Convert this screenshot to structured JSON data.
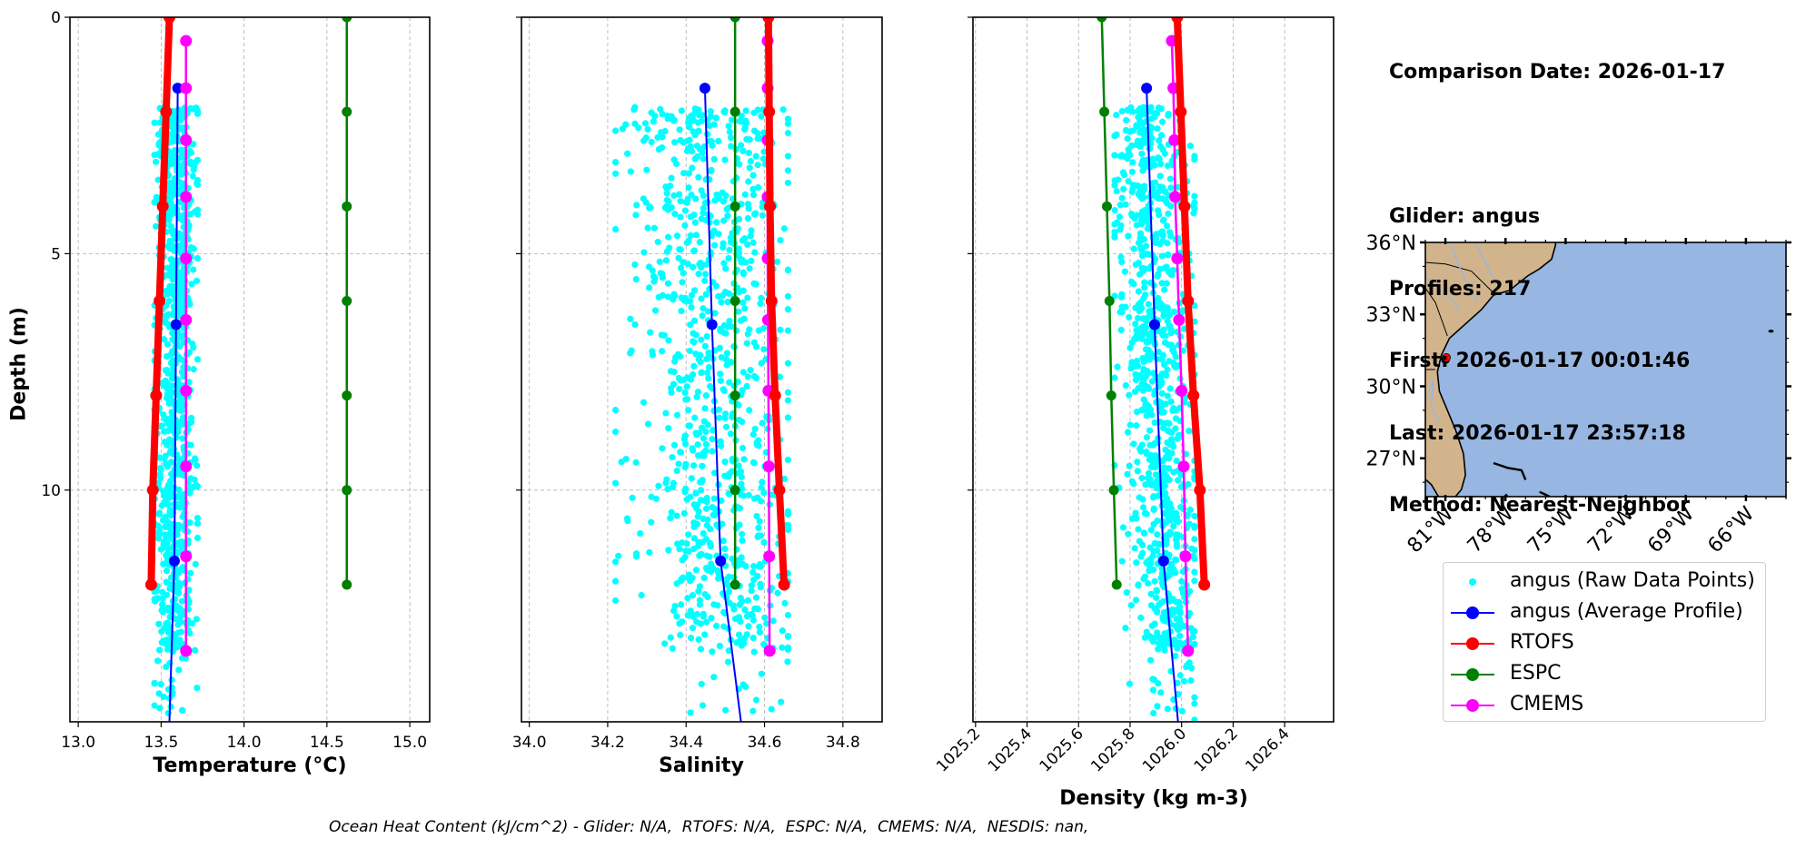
{
  "info": {
    "comparison_date": "Comparison Date: 2026-01-17",
    "glider": "Glider: angus",
    "profiles": "Profiles: 217",
    "first": "First: 2026-01-17 00:01:46",
    "last": "Last: 2026-01-17 23:57:18",
    "method": "Method: Nearest-Neighbor"
  },
  "footer": "Ocean Heat Content (kJ/cm^2) - Glider: N/A,  RTOFS: N/A,  ESPC: N/A,  CMEMS: N/A,  NESDIS: nan,",
  "colors": {
    "raw": "#00ffff",
    "glider": "#0000ff",
    "rtofs": "#ff0000",
    "espc": "#008000",
    "cmems": "#ff00ff",
    "land": "#d2b48c",
    "ocean": "#97b6e1",
    "rivers": "#97b6e1"
  },
  "legend": [
    {
      "key": "raw",
      "label": "angus (Raw Data Points)",
      "style": "dot"
    },
    {
      "key": "glider",
      "label": "angus (Average Profile)",
      "style": "line"
    },
    {
      "key": "rtofs",
      "label": "RTOFS",
      "style": "line"
    },
    {
      "key": "espc",
      "label": "ESPC",
      "style": "line"
    },
    {
      "key": "cmems",
      "label": "CMEMS",
      "style": "line"
    }
  ],
  "chart_data": [
    {
      "type": "line",
      "title": "",
      "xlabel": "Temperature (°C)",
      "ylabel": "Depth (m)",
      "xlim": [
        12.95,
        15.12
      ],
      "ylim": [
        14.9,
        0
      ],
      "xticks": [
        "13.0",
        "13.5",
        "14.0",
        "14.5",
        "15.0"
      ],
      "xtick_values": [
        13.0,
        13.5,
        14.0,
        14.5,
        15.0
      ],
      "yticks": [
        "0",
        "5",
        "10"
      ],
      "ytick_values": [
        0,
        5,
        10
      ],
      "grid": true,
      "raw_points": {
        "x_range": [
          13.46,
          13.72
        ],
        "depth_range": [
          1.9,
          14.9
        ],
        "count": 900
      },
      "series": [
        {
          "name": "angus (Average Profile)",
          "key": "glider",
          "depth": [
            1.5,
            6.5,
            11.5,
            14.9
          ],
          "values": [
            13.6,
            13.59,
            13.58,
            13.55
          ],
          "markers": [
            true,
            true,
            true,
            false
          ]
        },
        {
          "name": "RTOFS",
          "key": "rtofs",
          "depth": [
            0,
            2,
            4,
            6,
            8,
            10,
            12
          ],
          "values": [
            13.55,
            13.53,
            13.51,
            13.49,
            13.47,
            13.45,
            13.44
          ],
          "markers": [
            true,
            true,
            true,
            true,
            true,
            true,
            true
          ]
        },
        {
          "name": "ESPC",
          "key": "espc",
          "depth": [
            0,
            2,
            4,
            6,
            8,
            10,
            12
          ],
          "values": [
            14.62,
            14.62,
            14.62,
            14.62,
            14.62,
            14.62,
            14.62
          ],
          "markers": [
            true,
            true,
            true,
            true,
            true,
            true,
            true
          ]
        },
        {
          "name": "CMEMS",
          "key": "cmems",
          "depth": [
            0.5,
            1.5,
            2.6,
            3.8,
            5.1,
            6.4,
            7.9,
            9.5,
            11.4,
            13.4
          ],
          "values": [
            13.65,
            13.65,
            13.65,
            13.65,
            13.65,
            13.65,
            13.65,
            13.65,
            13.65,
            13.65
          ],
          "markers": [
            true,
            true,
            true,
            true,
            true,
            true,
            true,
            true,
            true,
            true
          ]
        }
      ]
    },
    {
      "type": "line",
      "title": "",
      "xlabel": "Salinity",
      "ylabel": "",
      "xlim": [
        33.98,
        34.9
      ],
      "ylim": [
        14.9,
        0
      ],
      "xticks": [
        "34.0",
        "34.2",
        "34.4",
        "34.6",
        "34.8"
      ],
      "xtick_values": [
        34.0,
        34.2,
        34.4,
        34.6,
        34.8
      ],
      "yticks": [],
      "ytick_values": [
        0,
        5,
        10
      ],
      "grid": true,
      "raw_points": {
        "x_range": [
          34.22,
          34.66
        ],
        "depth_range": [
          1.9,
          14.9
        ],
        "count": 900
      },
      "series": [
        {
          "name": "angus (Average Profile)",
          "key": "glider",
          "depth": [
            1.5,
            6.5,
            11.5,
            14.9
          ],
          "values": [
            34.448,
            34.466,
            34.488,
            34.54
          ],
          "markers": [
            true,
            true,
            true,
            false
          ]
        },
        {
          "name": "RTOFS",
          "key": "rtofs",
          "depth": [
            0,
            2,
            4,
            6,
            8,
            10,
            12
          ],
          "values": [
            34.61,
            34.612,
            34.614,
            34.618,
            34.627,
            34.638,
            34.65
          ],
          "markers": [
            true,
            true,
            true,
            true,
            true,
            true,
            true
          ]
        },
        {
          "name": "ESPC",
          "key": "espc",
          "depth": [
            0,
            2,
            4,
            6,
            8,
            10,
            12
          ],
          "values": [
            34.525,
            34.525,
            34.525,
            34.525,
            34.525,
            34.525,
            34.525
          ],
          "markers": [
            true,
            true,
            true,
            true,
            true,
            true,
            true
          ]
        },
        {
          "name": "CMEMS",
          "key": "cmems",
          "depth": [
            0.5,
            1.5,
            2.6,
            3.8,
            5.1,
            6.4,
            7.9,
            9.5,
            11.4,
            13.4
          ],
          "values": [
            34.608,
            34.608,
            34.608,
            34.608,
            34.608,
            34.609,
            34.61,
            34.611,
            34.612,
            34.613
          ],
          "markers": [
            true,
            true,
            true,
            true,
            true,
            true,
            true,
            true,
            true,
            true
          ]
        }
      ]
    },
    {
      "type": "line",
      "title": "",
      "xlabel": "Density (kg m-3)",
      "ylabel": "",
      "xlim": [
        1025.19,
        1026.59
      ],
      "ylim": [
        14.9,
        0
      ],
      "xticks": [
        "1025.2",
        "1025.4",
        "1025.6",
        "1025.8",
        "1026.0",
        "1026.2",
        "1026.4"
      ],
      "xtick_values": [
        1025.2,
        1025.4,
        1025.6,
        1025.8,
        1026.0,
        1026.2,
        1026.4
      ],
      "yticks": [],
      "ytick_values": [
        0,
        5,
        10
      ],
      "grid": true,
      "raw_points": {
        "x_range": [
          1025.74,
          1026.05
        ],
        "depth_range": [
          1.9,
          14.9
        ],
        "count": 900
      },
      "series": [
        {
          "name": "angus (Average Profile)",
          "key": "glider",
          "depth": [
            1.5,
            6.5,
            11.5,
            14.9
          ],
          "values": [
            1025.864,
            1025.895,
            1025.93,
            1025.986
          ],
          "markers": [
            true,
            true,
            true,
            false
          ]
        },
        {
          "name": "RTOFS",
          "key": "rtofs",
          "depth": [
            0,
            2,
            4,
            6,
            8,
            10,
            12
          ],
          "values": [
            1025.983,
            1025.997,
            1026.011,
            1026.025,
            1026.046,
            1026.071,
            1026.088
          ],
          "markers": [
            true,
            true,
            true,
            true,
            true,
            true,
            true
          ]
        },
        {
          "name": "ESPC",
          "key": "espc",
          "depth": [
            0,
            2,
            4,
            6,
            8,
            10,
            12
          ],
          "values": [
            1025.69,
            1025.7,
            1025.71,
            1025.72,
            1025.727,
            1025.737,
            1025.748
          ],
          "markers": [
            true,
            true,
            true,
            true,
            true,
            true,
            true
          ]
        },
        {
          "name": "CMEMS",
          "key": "cmems",
          "depth": [
            0.5,
            1.5,
            2.6,
            3.8,
            5.1,
            6.4,
            7.9,
            9.5,
            11.4,
            13.4
          ],
          "values": [
            1025.962,
            1025.968,
            1025.972,
            1025.975,
            1025.983,
            1025.99,
            1026.0,
            1026.008,
            1026.015,
            1026.025
          ],
          "markers": [
            true,
            true,
            true,
            true,
            true,
            true,
            true,
            true,
            true,
            true
          ]
        }
      ]
    },
    {
      "type": "scatter",
      "title": "",
      "xlabel": "",
      "ylabel": "",
      "xlim": [
        -82.0,
        -64.0
      ],
      "ylim": [
        25.4,
        36.0
      ],
      "xticks": [
        "81°W",
        "78°W",
        "75°W",
        "72°W",
        "69°W",
        "66°W"
      ],
      "xtick_values": [
        -81,
        -78,
        -75,
        -72,
        -69,
        -66
      ],
      "yticks": [
        "36°N",
        "33°N",
        "30°N",
        "27°N"
      ],
      "ytick_values": [
        36,
        33,
        30,
        27
      ],
      "grid": false,
      "points": [
        {
          "name": "angus",
          "lon": -80.95,
          "lat": 31.2
        }
      ]
    }
  ]
}
